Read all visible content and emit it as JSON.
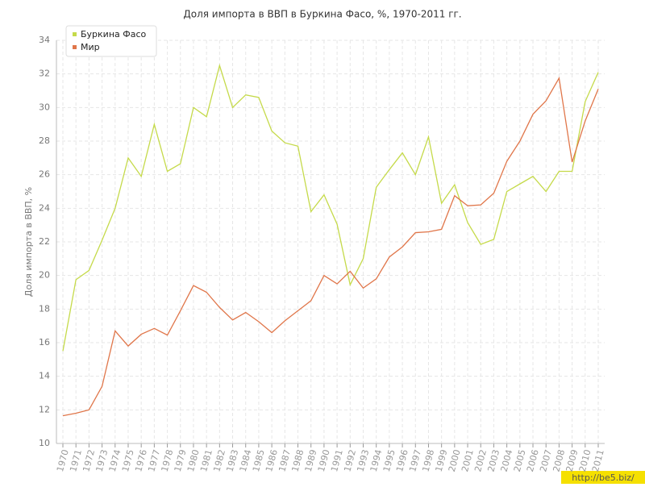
{
  "chart_data": {
    "type": "line",
    "title": "Доля импорта в ВВП в Буркина Фасо, %, 1970-2011 гг.",
    "y_label": "Доля импорта в ВВП, %",
    "watermark": "http://be5.biz/",
    "categories": [
      "1970",
      "1971",
      "1972",
      "1973",
      "1974",
      "1975",
      "1976",
      "1977",
      "1978",
      "1979",
      "1980",
      "1981",
      "1982",
      "1983",
      "1984",
      "1985",
      "1986",
      "1987",
      "1988",
      "1989",
      "1990",
      "1991",
      "1992",
      "1993",
      "1994",
      "1995",
      "1996",
      "1997",
      "1998",
      "1999",
      "2000",
      "2001",
      "2002",
      "2003",
      "2004",
      "2005",
      "2006",
      "2007",
      "2008",
      "2009",
      "2010",
      "2011"
    ],
    "series": [
      {
        "name": "Буркина Фасо",
        "color": "#c5da4a",
        "values": [
          15.5,
          19.75,
          20.3,
          22.1,
          24.0,
          27.0,
          25.9,
          29.0,
          26.2,
          26.65,
          30.0,
          29.45,
          32.5,
          30.0,
          30.75,
          30.6,
          28.6,
          27.9,
          27.7,
          23.8,
          24.8,
          23.05,
          19.45,
          21.0,
          25.25,
          26.3,
          27.3,
          26.0,
          28.25,
          24.3,
          25.4,
          23.15,
          21.85,
          22.15,
          25.0,
          25.45,
          25.9,
          25.0,
          26.2,
          26.2,
          30.35,
          32.1
        ]
      },
      {
        "name": "Мир",
        "color": "#e0764a",
        "values": [
          11.65,
          11.8,
          12.0,
          13.4,
          16.7,
          15.8,
          16.5,
          16.85,
          16.45,
          17.9,
          19.4,
          19.0,
          18.1,
          17.35,
          17.8,
          17.25,
          16.6,
          17.3,
          17.9,
          18.5,
          20.0,
          19.5,
          20.25,
          19.25,
          19.8,
          21.1,
          21.7,
          22.55,
          22.6,
          22.75,
          24.75,
          24.15,
          24.2,
          24.9,
          26.8,
          28.0,
          29.6,
          30.4,
          31.75,
          26.75,
          29.2,
          31.1
        ]
      }
    ],
    "ylim": [
      10,
      34
    ],
    "yticks": [
      10,
      12,
      14,
      16,
      18,
      20,
      22,
      24,
      26,
      28,
      30,
      32,
      34
    ],
    "grid": true,
    "legend": "upper left"
  }
}
